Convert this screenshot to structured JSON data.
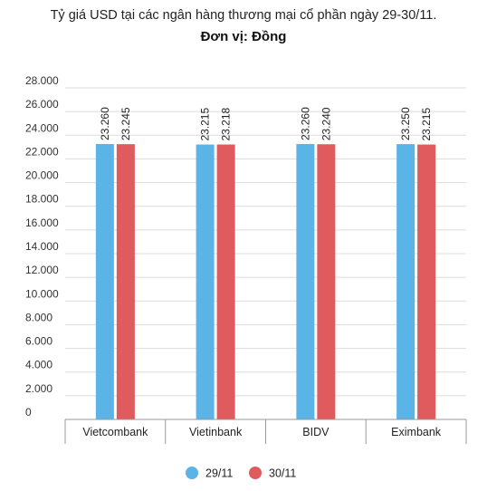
{
  "chart_data": {
    "type": "bar",
    "title": "Tỷ giá USD tại các ngân hàng thương mại cổ phần ngày 29-30/11.",
    "subtitle": "Đơn vị: Đồng",
    "categories": [
      "Vietcombank",
      "Vietinbank",
      "BIDV",
      "Eximbank"
    ],
    "series": [
      {
        "name": "29/11",
        "color": "#5ab4e5",
        "values": [
          23260,
          23215,
          23260,
          23250
        ],
        "labels": [
          "23.260",
          "23.215",
          "23.260",
          "23.250"
        ]
      },
      {
        "name": "30/11",
        "color": "#e05b5e",
        "values": [
          23245,
          23218,
          23240,
          23215
        ],
        "labels": [
          "23.245",
          "23.218",
          "23.240",
          "23.215"
        ]
      }
    ],
    "ylim": [
      0,
      28000
    ],
    "yticks": [
      0,
      2000,
      4000,
      6000,
      8000,
      10000,
      12000,
      14000,
      16000,
      18000,
      20000,
      22000,
      24000,
      26000,
      28000
    ],
    "ytick_labels": [
      "0",
      "2.000",
      "4.000",
      "6.000",
      "8.000",
      "10.000",
      "12.000",
      "14.000",
      "16.000",
      "18.000",
      "20.000",
      "22.000",
      "24.000",
      "26.000",
      "28.000"
    ],
    "grid": true,
    "legend": "bottom"
  }
}
